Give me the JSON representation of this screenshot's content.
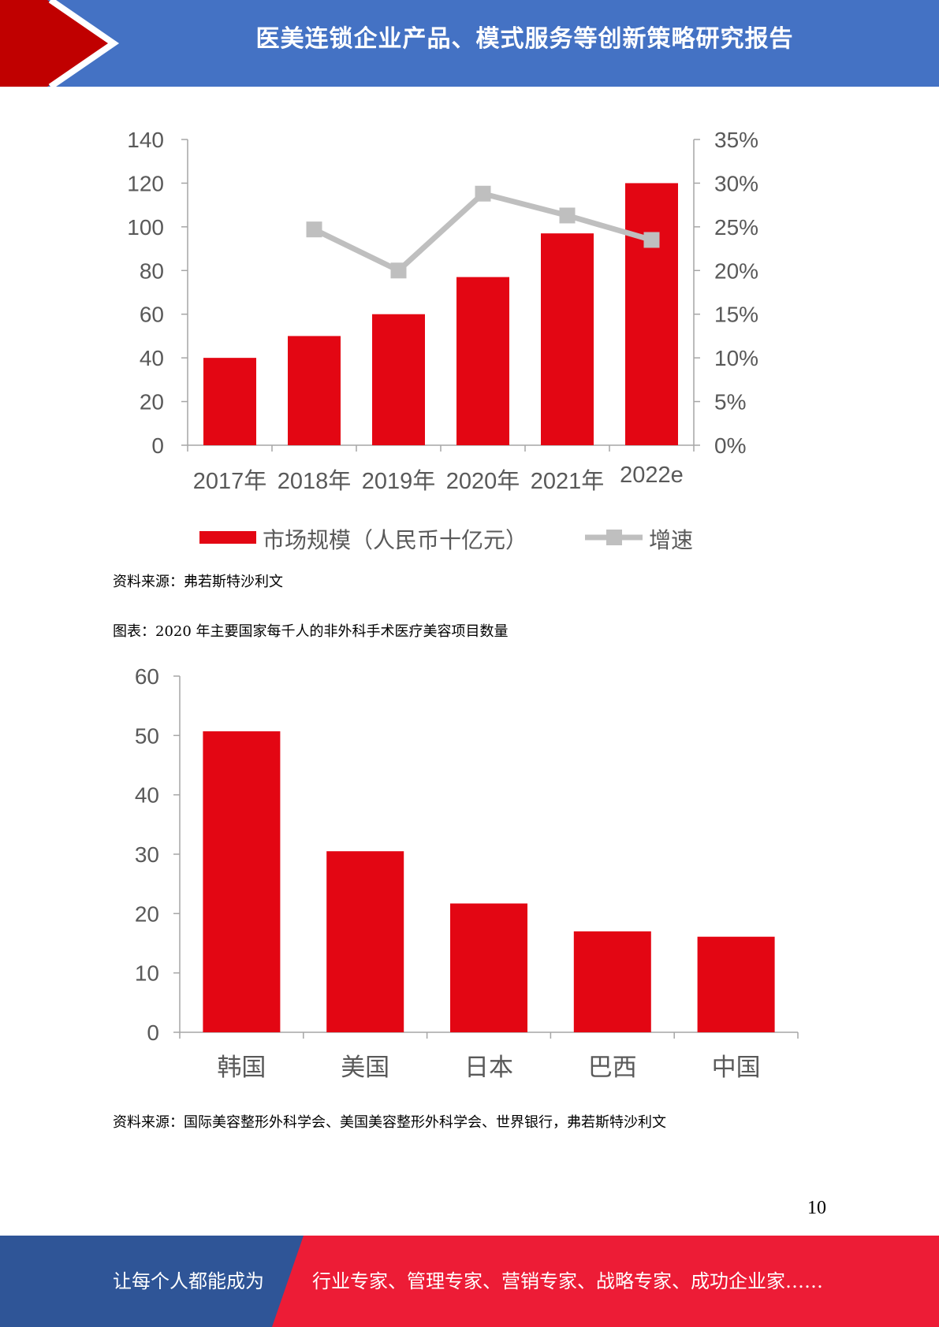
{
  "header": {
    "title": "医美连锁企业产品、模式服务等创新策略研究报告"
  },
  "colors": {
    "header_blue": "#4472c4",
    "accent_red": "#c00000",
    "bar_red": "#e30613",
    "line_gray": "#bfbfbf",
    "footer_blue": "#2f5597",
    "footer_red": "#ed1c36"
  },
  "chart_data": [
    {
      "type": "bar",
      "categories": [
        "2017年",
        "2018年",
        "2019年",
        "2020年",
        "2021年",
        "2022e"
      ],
      "series": [
        {
          "name": "市场规模（人民币十亿元）",
          "type": "bar",
          "axis": "left",
          "values": [
            40,
            50,
            60,
            77,
            97,
            120
          ]
        },
        {
          "name": "增速",
          "type": "line",
          "axis": "right",
          "values": [
            null,
            0.247,
            0.2,
            0.288,
            0.263,
            0.235
          ]
        }
      ],
      "y_left": {
        "ylim": [
          0,
          140
        ],
        "ticks": [
          "0",
          "20",
          "40",
          "60",
          "80",
          "100",
          "120",
          "140"
        ]
      },
      "y_right": {
        "ylim": [
          0,
          0.35
        ],
        "ticks": [
          "0%",
          "5%",
          "10%",
          "15%",
          "20%",
          "25%",
          "30%",
          "35%"
        ]
      },
      "legend_position": "bottom",
      "grid": false,
      "title": "",
      "xlabel": "",
      "ylabel": ""
    },
    {
      "type": "bar",
      "categories": [
        "韩国",
        "美国",
        "日本",
        "巴西",
        "中国"
      ],
      "values": [
        50.7,
        30.5,
        21.7,
        17.0,
        16.1
      ],
      "ylim": [
        0,
        60
      ],
      "ticks": [
        "0",
        "10",
        "20",
        "30",
        "40",
        "50",
        "60"
      ],
      "grid": false,
      "title": "",
      "xlabel": "",
      "ylabel": ""
    }
  ],
  "captions": {
    "source1": "资料来源：弗若斯特沙利文",
    "figure2_title": "图表：2020 年主要国家每千人的非外科手术医疗美容项目数量",
    "source2": "资料来源：国际美容整形外科学会、美国美容整形外科学会、世界银行，弗若斯特沙利文"
  },
  "page": {
    "number": "10"
  },
  "footer": {
    "left": "让每个人都能成为",
    "right": "行业专家、管理专家、营销专家、战略专家、成功企业家……"
  }
}
